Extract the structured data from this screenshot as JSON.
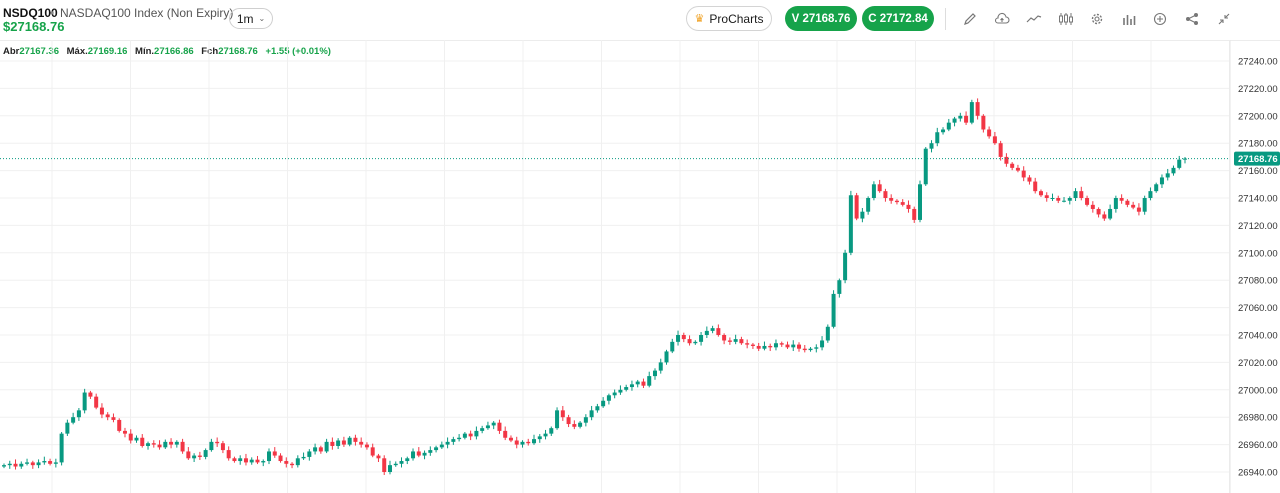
{
  "header": {
    "symbol": "NSDQ100",
    "separator": "•",
    "instrument_name": "NASDAQ100 Index (Non Expiry)",
    "price": "$27168.76",
    "timeframe": "1m",
    "procharts_label": "ProCharts",
    "sell_label": "V 27168.76",
    "buy_label": "C 27172.84"
  },
  "toolbar_icons": [
    "pencil-icon",
    "cloud-icon",
    "line-chart-icon",
    "candlestick-icon",
    "gear-icon",
    "bar-chart-icon",
    "plus-circle-icon",
    "share-icon",
    "collapse-icon"
  ],
  "ohlc": {
    "open_label": "Abr",
    "open": "27167.36",
    "high_label": "Máx.",
    "high": "27169.16",
    "low_label": "Mín.",
    "low": "27166.86",
    "close_label": "Fch",
    "close": "27168.76",
    "change": "+1.55 (+0.01%)"
  },
  "colors": {
    "up": "#089981",
    "down": "#f23645",
    "accent": "#16a34a",
    "grid": "#f0f0f0"
  },
  "chart_data": {
    "type": "candlestick",
    "y_tick_labels": [
      "27240.00",
      "27220.00",
      "27200.00",
      "27180.00",
      "27160.00",
      "27140.00",
      "27120.00",
      "27100.00",
      "27080.00",
      "27060.00",
      "27040.00",
      "27020.00",
      "27000.00",
      "26980.00",
      "26960.00",
      "26940.00"
    ],
    "ylim": [
      26932,
      27250
    ],
    "last_price_label": "27168.76",
    "last_price": 27168.76,
    "grid": true,
    "closes": [
      26945,
      26946,
      26944,
      26946,
      26947,
      26945,
      26947,
      26948,
      26946,
      26947,
      26968,
      26976,
      26980,
      26985,
      26998,
      26995,
      26987,
      26982,
      26980,
      26978,
      26970,
      26968,
      26963,
      26965,
      26959,
      26961,
      26960,
      26958,
      26962,
      26960,
      26962,
      26955,
      26950,
      26952,
      26951,
      26956,
      26962,
      26961,
      26956,
      26950,
      26948,
      26950,
      26947,
      26949,
      26947,
      26948,
      26955,
      26952,
      26948,
      26946,
      26945,
      26950,
      26951,
      26955,
      26958,
      26955,
      26962,
      26959,
      26963,
      26960,
      26965,
      26962,
      26960,
      26958,
      26952,
      26950,
      26940,
      26945,
      26946,
      26948,
      26950,
      26955,
      26952,
      26954,
      26956,
      26958,
      26960,
      26962,
      26964,
      26965,
      26968,
      26966,
      26970,
      26972,
      26974,
      26976,
      26970,
      26965,
      26963,
      26960,
      26962,
      26961,
      26964,
      26966,
      26968,
      26972,
      26985,
      26980,
      26975,
      26973,
      26976,
      26980,
      26985,
      26988,
      26992,
      26996,
      26998,
      27000,
      27002,
      27004,
      27006,
      27003,
      27010,
      27014,
      27020,
      27028,
      27035,
      27040,
      27037,
      27034,
      27035,
      27040,
      27043,
      27045,
      27040,
      27036,
      27035,
      27037,
      27034,
      27033,
      27032,
      27030,
      27032,
      27031,
      27034,
      27033,
      27031,
      27033,
      27030,
      27029,
      27030,
      27031,
      27036,
      27046,
      27070,
      27080,
      27100,
      27142,
      27125,
      27130,
      27140,
      27150,
      27145,
      27140,
      27138,
      27137,
      27135,
      27132,
      27124,
      27150,
      27176,
      27180,
      27188,
      27190,
      27195,
      27198,
      27200,
      27195,
      27210,
      27200,
      27190,
      27185,
      27180,
      27170,
      27165,
      27162,
      27160,
      27155,
      27152,
      27145,
      27142,
      27140,
      27140,
      27138,
      27138,
      27140,
      27145,
      27140,
      27135,
      27132,
      27128,
      27125,
      27132,
      27140,
      27138,
      27135,
      27133,
      27130,
      27140,
      27145,
      27150,
      27155,
      27158,
      27162,
      27168,
      27168.76
    ]
  }
}
